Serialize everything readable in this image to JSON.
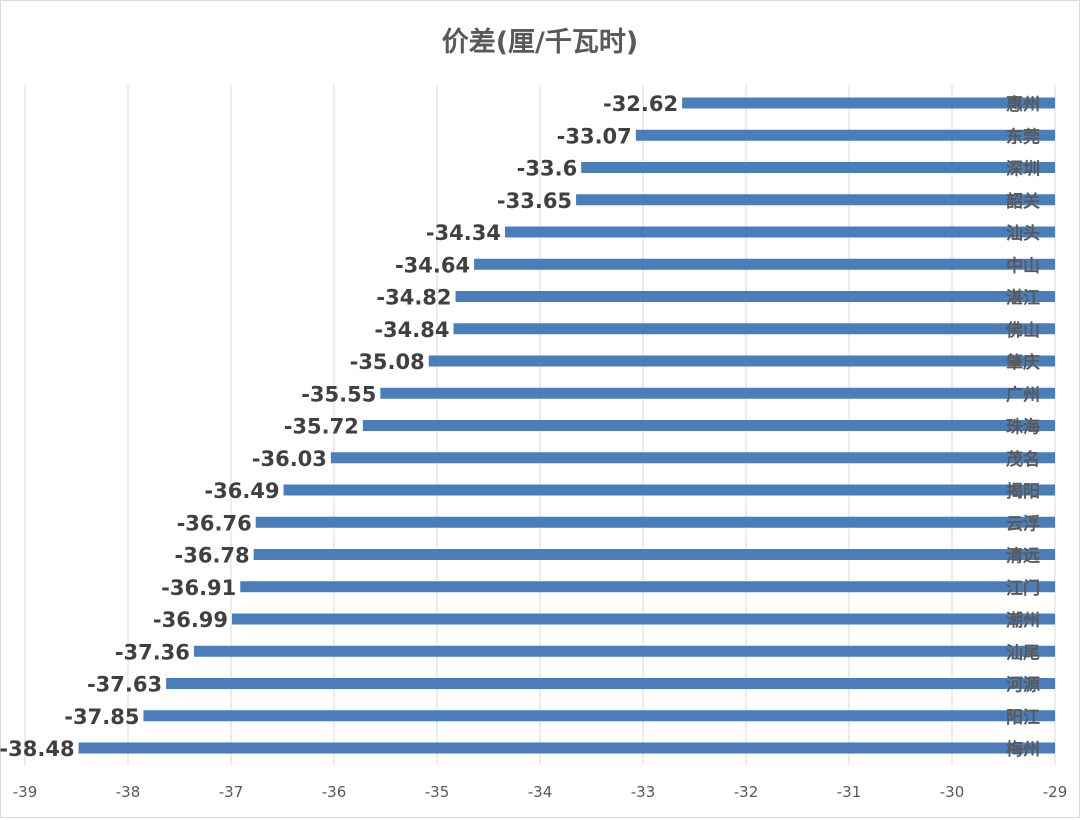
{
  "chart_data": {
    "type": "bar",
    "orientation": "horizontal",
    "title": "价差(厘/千瓦时)",
    "categories": [
      "惠州",
      "东莞",
      "深圳",
      "韶关",
      "汕头",
      "中山",
      "湛江",
      "佛山",
      "肇庆",
      "广州",
      "珠海",
      "茂名",
      "揭阳",
      "云浮",
      "清远",
      "江门",
      "潮州",
      "汕尾",
      "河源",
      "阳江",
      "梅州"
    ],
    "values": [
      -32.62,
      -33.07,
      -33.6,
      -33.65,
      -34.34,
      -34.64,
      -34.82,
      -34.84,
      -35.08,
      -35.55,
      -35.72,
      -36.03,
      -36.49,
      -36.76,
      -36.78,
      -36.91,
      -36.99,
      -37.36,
      -37.63,
      -37.85,
      -38.48
    ],
    "value_labels": [
      "-32.62",
      "-33.07",
      "-33.6",
      "-33.65",
      "-34.34",
      "-34.64",
      "-34.82",
      "-34.84",
      "-35.08",
      "-35.55",
      "-35.72",
      "-36.03",
      "-36.49",
      "-36.76",
      "-36.78",
      "-36.91",
      "-36.99",
      "-37.36",
      "-37.63",
      "-37.85",
      "-38.48"
    ],
    "xlim": [
      -39,
      -29
    ],
    "xticks": [
      "-39",
      "-38",
      "-37",
      "-36",
      "-35",
      "-34",
      "-33",
      "-32",
      "-31",
      "-30",
      "-29"
    ],
    "xlabel": "",
    "ylabel": "",
    "grid": "vertical",
    "legend": "none",
    "bar_color": "#4a7ebb",
    "label_color": "#404040",
    "category_label_color": "#595959"
  }
}
